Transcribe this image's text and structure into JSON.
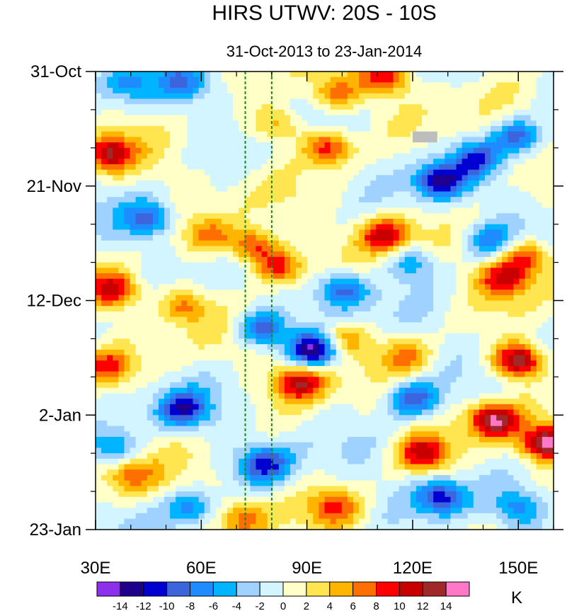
{
  "chart_data": {
    "type": "heatmap",
    "title": "HIRS UTWV: 20S - 10S",
    "subtitle": "31-Oct-2013 to 23-Jan-2014",
    "x_axis": {
      "range": [
        30,
        160
      ],
      "ticks": [
        {
          "value": 30,
          "label": "30E"
        },
        {
          "value": 60,
          "label": "60E"
        },
        {
          "value": 90,
          "label": "90E"
        },
        {
          "value": 120,
          "label": "120E"
        },
        {
          "value": 150,
          "label": "150E"
        }
      ],
      "minor_step": 10
    },
    "y_axis": {
      "range_days": [
        0,
        84
      ],
      "direction": "top-to-bottom",
      "ticks": [
        {
          "value": 0,
          "label": "31-Oct"
        },
        {
          "value": 21,
          "label": "21-Nov"
        },
        {
          "value": 42,
          "label": "12-Dec"
        },
        {
          "value": 63,
          "label": "2-Jan"
        },
        {
          "value": 84,
          "label": "23-Jan"
        }
      ],
      "minor_step": 7
    },
    "reference_lines": [
      {
        "x": 72.5,
        "color": "#1a8a1a",
        "style": "dashed"
      },
      {
        "x": 80,
        "color": "#1a8a1a",
        "style": "dashed"
      }
    ],
    "missing_data_patches": [
      {
        "x": [
          120,
          127
        ],
        "day": [
          11,
          13
        ],
        "color": "#bdbdbd"
      }
    ],
    "colorbar": {
      "unit": "K",
      "levels": [
        "-14",
        "-12",
        "-10",
        "-8",
        "-6",
        "-4",
        "-2",
        "0",
        "2",
        "4",
        "6",
        "8",
        "10",
        "12",
        "14"
      ],
      "colors": [
        "#8c30ec",
        "#1e008c",
        "#0000d2",
        "#3c64dc",
        "#1e8cff",
        "#00b4ff",
        "#a0d2ff",
        "#d2f5ff",
        "#ffffc8",
        "#ffe650",
        "#ffb400",
        "#ff6e00",
        "#ff0000",
        "#c80000",
        "#a02828",
        "#ff78c8"
      ]
    },
    "features": [
      {
        "x": 112,
        "day": 30,
        "value": 11
      },
      {
        "x": 98,
        "day": 4,
        "value": 7
      },
      {
        "x": 112,
        "day": 1,
        "value": 9
      },
      {
        "x": 82,
        "day": 10,
        "value": 6
      },
      {
        "x": 96,
        "day": 14,
        "value": 10
      },
      {
        "x": 34,
        "day": 15,
        "value": 11
      },
      {
        "x": 62,
        "day": 30,
        "value": 6
      },
      {
        "x": 75,
        "day": 32,
        "value": 10
      },
      {
        "x": 82,
        "day": 36,
        "value": 10
      },
      {
        "x": 35,
        "day": 40,
        "value": 10
      },
      {
        "x": 55,
        "day": 43,
        "value": 7
      },
      {
        "x": 100,
        "day": 49,
        "value": 7
      },
      {
        "x": 88,
        "day": 57,
        "value": 11
      },
      {
        "x": 150,
        "day": 53,
        "value": 15
      },
      {
        "x": 143,
        "day": 64,
        "value": 13
      },
      {
        "x": 158,
        "day": 68,
        "value": 14
      },
      {
        "x": 123,
        "day": 70,
        "value": 10
      },
      {
        "x": 33,
        "day": 54,
        "value": 9
      },
      {
        "x": 146,
        "day": 38,
        "value": 10
      },
      {
        "x": 152,
        "day": 34,
        "value": 9
      },
      {
        "x": 118,
        "day": 52,
        "value": 6
      },
      {
        "x": 72,
        "day": 82,
        "value": 6
      },
      {
        "x": 98,
        "day": 80,
        "value": 7
      },
      {
        "x": 40,
        "day": 74,
        "value": 6
      },
      {
        "x": 128,
        "day": 20,
        "value": -12
      },
      {
        "x": 138,
        "day": 16,
        "value": -8
      },
      {
        "x": 150,
        "day": 12,
        "value": -9
      },
      {
        "x": 45,
        "day": 27,
        "value": -8
      },
      {
        "x": 39,
        "day": 2,
        "value": -6
      },
      {
        "x": 55,
        "day": 2,
        "value": -6
      },
      {
        "x": 92,
        "day": 51,
        "value": -14
      },
      {
        "x": 77,
        "day": 47,
        "value": -10
      },
      {
        "x": 100,
        "day": 40,
        "value": -9
      },
      {
        "x": 120,
        "day": 60,
        "value": -10
      },
      {
        "x": 55,
        "day": 62,
        "value": -10
      },
      {
        "x": 78,
        "day": 72,
        "value": -10
      },
      {
        "x": 128,
        "day": 78,
        "value": -10
      },
      {
        "x": 57,
        "day": 80,
        "value": -7
      },
      {
        "x": 35,
        "day": 69,
        "value": -6
      },
      {
        "x": 142,
        "day": 31,
        "value": -7
      },
      {
        "x": 120,
        "day": 35,
        "value": -6
      },
      {
        "x": 150,
        "day": 80,
        "value": -6
      }
    ]
  }
}
